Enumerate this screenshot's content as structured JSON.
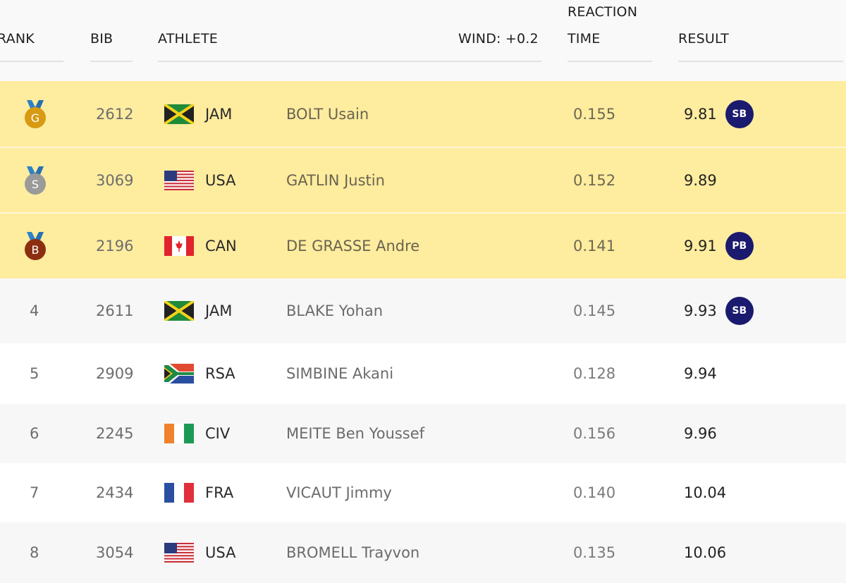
{
  "header": {
    "rank": "RANK",
    "bib": "BIB",
    "athlete": "ATHLETE",
    "wind": "WIND: +0.2",
    "reaction_line1": "REACTION",
    "reaction_line2": "TIME",
    "result": "RESULT"
  },
  "colors": {
    "medal_row_bg": "#feec9f",
    "badge_bg": "#1a1a6e",
    "gold": "#d79a12",
    "silver": "#9a9a9a",
    "bronze": "#8c2f10",
    "ribbon": "#2f82c8"
  },
  "rows": [
    {
      "rank": "",
      "medal": "G",
      "medal_type": "gold",
      "bib": "2612",
      "noc": "JAM",
      "flag": "jamaica-flag",
      "name": "BOLT Usain",
      "reaction_time": "0.155",
      "result": "9.81",
      "badge": "SB"
    },
    {
      "rank": "",
      "medal": "S",
      "medal_type": "silver",
      "bib": "3069",
      "noc": "USA",
      "flag": "usa-flag",
      "name": "GATLIN Justin",
      "reaction_time": "0.152",
      "result": "9.89",
      "badge": ""
    },
    {
      "rank": "",
      "medal": "B",
      "medal_type": "bronze",
      "bib": "2196",
      "noc": "CAN",
      "flag": "canada-flag",
      "name": "DE GRASSE Andre",
      "reaction_time": "0.141",
      "result": "9.91",
      "badge": "PB"
    },
    {
      "rank": "4",
      "bib": "2611",
      "noc": "JAM",
      "flag": "jamaica-flag",
      "name": "BLAKE Yohan",
      "reaction_time": "0.145",
      "result": "9.93",
      "badge": "SB"
    },
    {
      "rank": "5",
      "bib": "2909",
      "noc": "RSA",
      "flag": "south-africa-flag",
      "name": "SIMBINE Akani",
      "reaction_time": "0.128",
      "result": "9.94",
      "badge": ""
    },
    {
      "rank": "6",
      "bib": "2245",
      "noc": "CIV",
      "flag": "ivory-coast-flag",
      "name": "MEITE Ben Youssef",
      "reaction_time": "0.156",
      "result": "9.96",
      "badge": ""
    },
    {
      "rank": "7",
      "bib": "2434",
      "noc": "FRA",
      "flag": "france-flag",
      "name": "VICAUT Jimmy",
      "reaction_time": "0.140",
      "result": "10.04",
      "badge": ""
    },
    {
      "rank": "8",
      "bib": "3054",
      "noc": "USA",
      "flag": "usa-flag",
      "name": "BROMELL Trayvon",
      "reaction_time": "0.135",
      "result": "10.06",
      "badge": ""
    }
  ]
}
